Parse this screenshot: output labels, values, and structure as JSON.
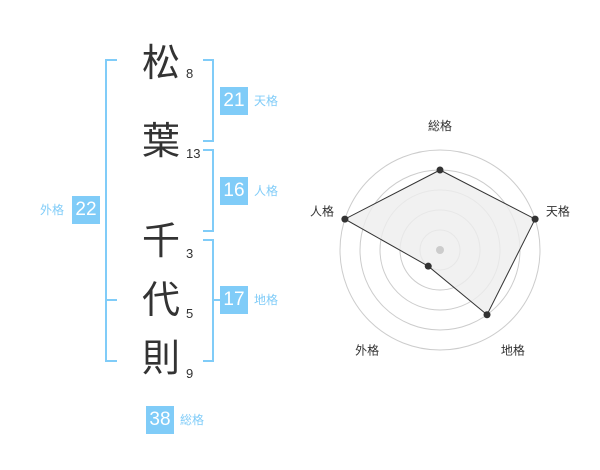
{
  "name": {
    "chars": [
      {
        "char": "松",
        "strokes": "8"
      },
      {
        "char": "葉",
        "strokes": "13"
      },
      {
        "char": "千",
        "strokes": "3"
      },
      {
        "char": "代",
        "strokes": "5"
      },
      {
        "char": "則",
        "strokes": "9"
      }
    ]
  },
  "kaku": {
    "tenkaku": {
      "label": "天格",
      "value": "21"
    },
    "jinkaku": {
      "label": "人格",
      "value": "16"
    },
    "chikaku": {
      "label": "地格",
      "value": "17"
    },
    "gaikaku": {
      "label": "外格",
      "value": "22"
    },
    "soukaku": {
      "label": "総格",
      "value": "38"
    }
  },
  "radar": {
    "axes": [
      "総格",
      "天格",
      "地格",
      "外格",
      "人格"
    ],
    "values": [
      4,
      5,
      4,
      1,
      5
    ],
    "max": 5,
    "rings": 5,
    "colors": {
      "fill": "#eeeeee",
      "stroke": "#333333",
      "ring": "#cccccc",
      "accent": "#80ccf8"
    }
  }
}
